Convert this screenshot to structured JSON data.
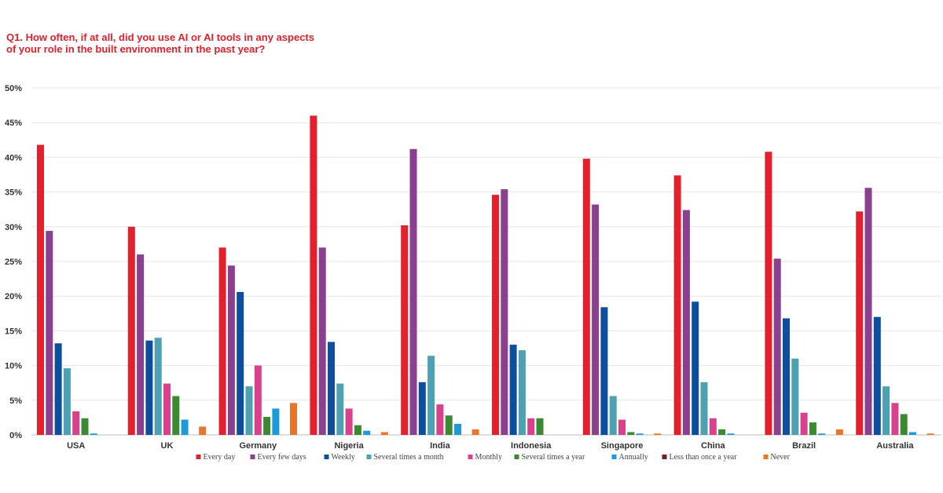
{
  "chart_data": {
    "type": "bar",
    "title": "Q1. How often, if at all, did you use AI or AI tools in any aspects\nof your role in the built environment in the past year?",
    "xlabel": "",
    "ylabel": "",
    "ylim": [
      0,
      50
    ],
    "ytick_labels": [
      "0%",
      "5%",
      "10%",
      "15%",
      "20%",
      "25%",
      "30%",
      "35%",
      "40%",
      "45%",
      "50%"
    ],
    "grid": true,
    "legend_position": "bottom",
    "categories": [
      "USA",
      "UK",
      "Germany",
      "Nigeria",
      "India",
      "Indonesia",
      "Singapore",
      "China",
      "Brazil",
      "Australia"
    ],
    "series": [
      {
        "name": "Every day",
        "color": "#e3202b",
        "values": [
          41.8,
          30.0,
          27.0,
          46.0,
          30.2,
          34.6,
          39.8,
          37.4,
          40.8,
          32.2
        ]
      },
      {
        "name": "Every few days",
        "color": "#8b3f8f",
        "values": [
          29.4,
          26.0,
          24.4,
          27.0,
          41.2,
          35.4,
          33.2,
          32.4,
          25.4,
          35.6
        ]
      },
      {
        "name": "Weekly",
        "color": "#0d4f9e",
        "values": [
          13.2,
          13.6,
          20.6,
          13.4,
          7.6,
          13.0,
          18.4,
          19.2,
          16.8,
          17.0
        ]
      },
      {
        "name": "Several times a month",
        "color": "#4da1b3",
        "values": [
          9.6,
          14.0,
          7.0,
          7.4,
          11.4,
          12.2,
          5.6,
          7.6,
          11.0,
          7.0
        ]
      },
      {
        "name": "Monthly",
        "color": "#d9418c",
        "values": [
          3.4,
          7.4,
          10.0,
          3.8,
          4.4,
          2.4,
          2.2,
          2.4,
          3.2,
          4.6
        ]
      },
      {
        "name": "Several times a year",
        "color": "#3a8a32",
        "values": [
          2.4,
          5.6,
          2.6,
          1.4,
          2.8,
          2.4,
          0.4,
          0.8,
          1.8,
          3.0
        ]
      },
      {
        "name": "Annually",
        "color": "#1e9ad8",
        "values": [
          0.2,
          2.2,
          3.8,
          0.6,
          1.6,
          0,
          0.2,
          0.2,
          0.2,
          0.4
        ]
      },
      {
        "name": "Less than once a year",
        "color": "#7a1f24",
        "values": [
          0,
          0,
          0,
          0,
          0,
          0,
          0,
          0,
          0,
          0
        ]
      },
      {
        "name": "Never",
        "color": "#e8762a",
        "values": [
          0,
          1.2,
          4.6,
          0.4,
          0.8,
          0,
          0.2,
          0,
          0.8,
          0.2
        ]
      }
    ]
  }
}
